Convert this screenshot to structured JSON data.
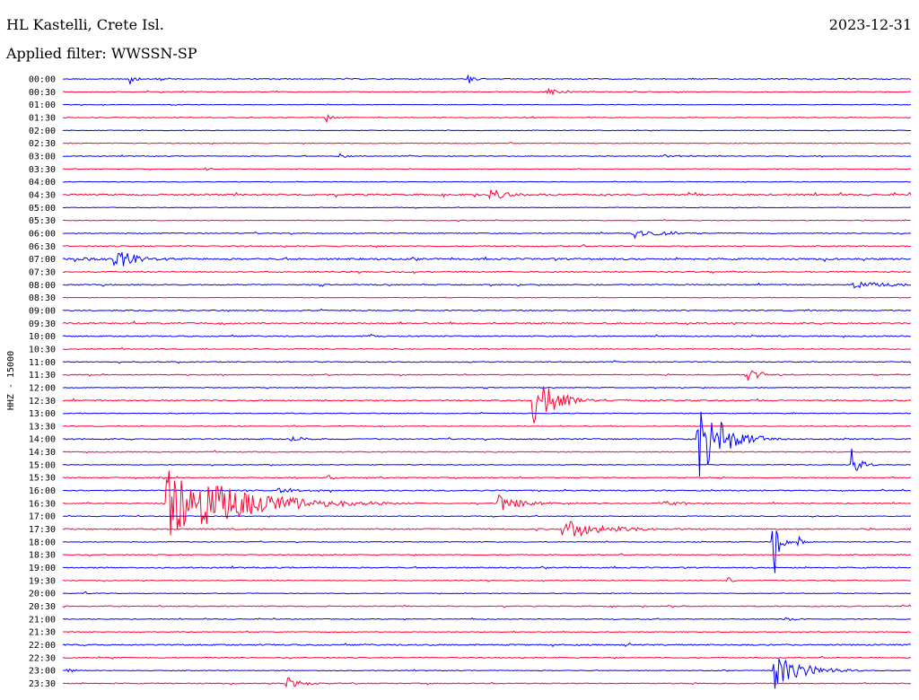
{
  "header": {
    "station": "HL Kastelli, Crete Isl.",
    "filter": "Applied filter: WWSSN-SP",
    "date": "2023-12-31"
  },
  "chart_data": {
    "type": "line",
    "ylabel": "HHZ - 15000",
    "colors": [
      "#0000ff",
      "#ff0033"
    ],
    "times": [
      "00:00",
      "00:30",
      "01:00",
      "01:30",
      "02:00",
      "02:30",
      "03:00",
      "03:30",
      "04:00",
      "04:30",
      "05:00",
      "05:30",
      "06:00",
      "06:30",
      "07:00",
      "07:30",
      "08:00",
      "08:30",
      "09:00",
      "09:30",
      "10:00",
      "10:30",
      "11:00",
      "11:30",
      "12:00",
      "12:30",
      "13:00",
      "13:30",
      "14:00",
      "14:30",
      "15:00",
      "15:30",
      "16:00",
      "16:30",
      "17:00",
      "17:30",
      "18:00",
      "18:30",
      "19:00",
      "19:30",
      "20:00",
      "20:30",
      "21:00",
      "21:30",
      "22:00",
      "22:30",
      "23:00",
      "23:30"
    ],
    "noise": [
      0.5,
      0.4,
      0.3,
      0.4,
      0.3,
      0.4,
      0.4,
      0.3,
      0.3,
      0.9,
      0.3,
      0.4,
      0.5,
      0.6,
      0.9,
      0.6,
      0.6,
      0.3,
      0.6,
      0.8,
      0.6,
      0.5,
      0.5,
      0.5,
      0.4,
      0.7,
      0.4,
      0.4,
      0.6,
      0.5,
      0.4,
      0.5,
      0.6,
      0.5,
      0.4,
      0.7,
      0.4,
      0.5,
      0.6,
      0.4,
      0.3,
      0.5,
      0.4,
      0.4,
      0.7,
      0.5,
      0.4,
      0.5
    ],
    "events": [
      {
        "line": "00:00",
        "x": 145,
        "amp": 5,
        "dur": 8
      },
      {
        "line": "00:00",
        "x": 175,
        "amp": 2,
        "dur": 15
      },
      {
        "line": "00:00",
        "x": 522,
        "amp": 8,
        "dur": 6
      },
      {
        "line": "00:30",
        "x": 610,
        "amp": 4,
        "dur": 25
      },
      {
        "line": "01:30",
        "x": 364,
        "amp": 6,
        "dur": 6
      },
      {
        "line": "03:00",
        "x": 378,
        "amp": 3,
        "dur": 12
      },
      {
        "line": "03:00",
        "x": 740,
        "amp": 2,
        "dur": 25
      },
      {
        "line": "03:30",
        "x": 230,
        "amp": 3,
        "dur": 4
      },
      {
        "line": "04:30",
        "x": 545,
        "amp": 6,
        "dur": 25
      },
      {
        "line": "06:00",
        "x": 705,
        "amp": 7,
        "dur": 30
      },
      {
        "line": "07:00",
        "x": 128,
        "amp": 16,
        "dur": 20
      },
      {
        "line": "07:00",
        "x": 80,
        "amp": 3,
        "dur": 30
      },
      {
        "line": "08:00",
        "x": 945,
        "amp": 5,
        "dur": 40
      },
      {
        "line": "10:00",
        "x": 410,
        "amp": 3,
        "dur": 8
      },
      {
        "line": "11:30",
        "x": 832,
        "amp": 8,
        "dur": 20
      },
      {
        "line": "12:30",
        "x": 594,
        "amp": 40,
        "dur": 20
      },
      {
        "line": "14:00",
        "x": 778,
        "amp": 60,
        "dur": 25
      },
      {
        "line": "14:00",
        "x": 325,
        "amp": 3,
        "dur": 20
      },
      {
        "line": "15:00",
        "x": 948,
        "amp": 16,
        "dur": 10
      },
      {
        "line": "15:30",
        "x": 365,
        "amp": 5,
        "dur": 10
      },
      {
        "line": "16:30",
        "x": 186,
        "amp": 55,
        "dur": 70
      },
      {
        "line": "16:30",
        "x": 555,
        "amp": 10,
        "dur": 30
      },
      {
        "line": "16:30",
        "x": 740,
        "amp": 3,
        "dur": 30
      },
      {
        "line": "16:00",
        "x": 305,
        "amp": 4,
        "dur": 25
      },
      {
        "line": "17:30",
        "x": 628,
        "amp": 14,
        "dur": 40
      },
      {
        "line": "18:00",
        "x": 862,
        "amp": 40,
        "dur": 6
      },
      {
        "line": "18:00",
        "x": 890,
        "amp": 7,
        "dur": 5
      },
      {
        "line": "19:30",
        "x": 811,
        "amp": 6,
        "dur": 4
      },
      {
        "line": "20:00",
        "x": 95,
        "amp": 3,
        "dur": 5
      },
      {
        "line": "21:00",
        "x": 872,
        "amp": 6,
        "dur": 8
      },
      {
        "line": "21:00",
        "x": 525,
        "amp": 2,
        "dur": 8
      },
      {
        "line": "23:00",
        "x": 862,
        "amp": 22,
        "dur": 30
      },
      {
        "line": "23:00",
        "x": 75,
        "amp": 3,
        "dur": 10
      },
      {
        "line": "23:30",
        "x": 320,
        "amp": 8,
        "dur": 15
      }
    ]
  }
}
